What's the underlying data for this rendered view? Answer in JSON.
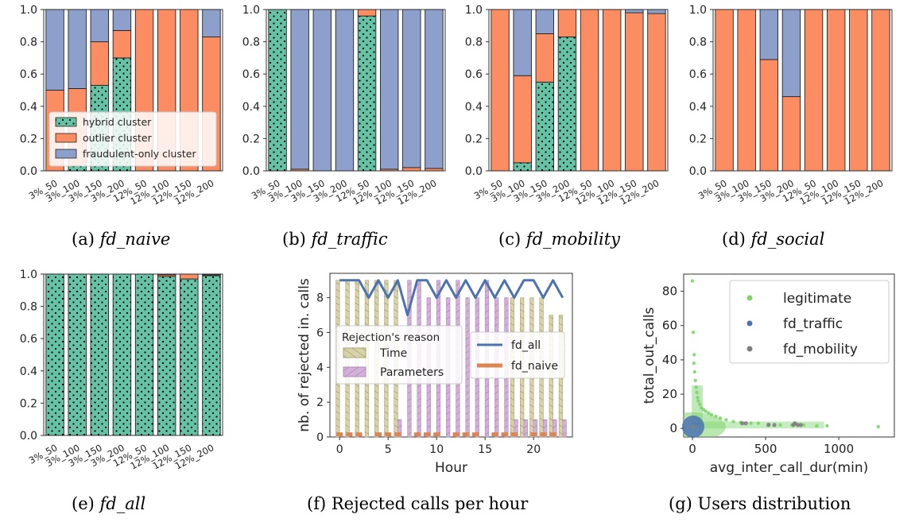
{
  "colors": {
    "hybrid": "#66c2a5",
    "outlier": "#fc8d62",
    "fraudulent": "#8da0cb",
    "time": "#d9d3a8",
    "parameters": "#d2b0d8",
    "fd_all": "#4c72b0",
    "fd_naive": "#dd8452",
    "legit": "#7fd46e",
    "fd_traffic_scatter": "#4c72b0",
    "fd_mobility_scatter": "#808080"
  },
  "cluster_legend": {
    "hybrid": "hybrid cluster",
    "outlier": "outlier cluster",
    "fraudulent": "fraudulent-only cluster"
  },
  "captions": {
    "a": {
      "prefix": "(a)",
      "name": "fd_naive"
    },
    "b": {
      "prefix": "(b)",
      "name": "fd_traffic"
    },
    "c": {
      "prefix": "(c)",
      "name": "fd_mobility"
    },
    "d": {
      "prefix": "(d)",
      "name": "fd_social"
    },
    "e": {
      "prefix": "(e)",
      "name": "fd_all"
    },
    "f": {
      "prefix": "(f)",
      "name": "Rejected calls per hour"
    },
    "g": {
      "prefix": "(g)",
      "name": "Users distribution"
    }
  },
  "chart_data": [
    {
      "id": "a",
      "type": "bar",
      "stacked": true,
      "categories": [
        "3%_50",
        "3%_100",
        "3%_150",
        "3%_200",
        "12%_50",
        "12%_100",
        "12%_150",
        "12%_200"
      ],
      "ylim": [
        0,
        1.0
      ],
      "yticks": [
        "0.0",
        "0.2",
        "0.4",
        "0.6",
        "0.8",
        "1.0"
      ],
      "legend": "lower-left",
      "series": [
        {
          "name": "hybrid cluster",
          "values": [
            0.0,
            0.03,
            0.53,
            0.7,
            0.0,
            0.0,
            0.0,
            0.0
          ]
        },
        {
          "name": "outlier cluster",
          "values": [
            0.5,
            0.48,
            0.27,
            0.17,
            1.0,
            1.0,
            1.0,
            0.83
          ]
        },
        {
          "name": "fraudulent-only cluster",
          "values": [
            0.5,
            0.49,
            0.2,
            0.13,
            0.0,
            0.0,
            0.0,
            0.17
          ]
        }
      ]
    },
    {
      "id": "b",
      "type": "bar",
      "stacked": true,
      "categories": [
        "3%_50",
        "3%_100",
        "3%_150",
        "3%_200",
        "12%_50",
        "12%_100",
        "12%_150",
        "12%_200"
      ],
      "ylim": [
        0,
        1.0
      ],
      "yticks": [
        "0.0",
        "0.2",
        "0.4",
        "0.6",
        "0.8",
        "1.0"
      ],
      "series": [
        {
          "name": "hybrid cluster",
          "values": [
            1.0,
            0.0,
            0.0,
            0.0,
            0.96,
            0.0,
            0.0,
            0.0
          ]
        },
        {
          "name": "outlier cluster",
          "values": [
            0.0,
            0.01,
            0.0,
            0.0,
            0.04,
            0.01,
            0.02,
            0.015
          ]
        },
        {
          "name": "fraudulent-only cluster",
          "values": [
            0.0,
            0.99,
            1.0,
            1.0,
            0.0,
            0.99,
            0.98,
            0.985
          ]
        }
      ]
    },
    {
      "id": "c",
      "type": "bar",
      "stacked": true,
      "categories": [
        "3%_50",
        "3%_100",
        "3%_150",
        "3%_200",
        "12%_50",
        "12%_100",
        "12%_150",
        "12%_200"
      ],
      "ylim": [
        0,
        1.0
      ],
      "yticks": [
        "0.0",
        "0.2",
        "0.4",
        "0.6",
        "0.8",
        "1.0"
      ],
      "series": [
        {
          "name": "hybrid cluster",
          "values": [
            0.0,
            0.05,
            0.55,
            0.83,
            0.0,
            0.0,
            0.0,
            0.0
          ]
        },
        {
          "name": "outlier cluster",
          "values": [
            1.0,
            0.54,
            0.3,
            0.17,
            1.0,
            1.0,
            0.98,
            0.975
          ]
        },
        {
          "name": "fraudulent-only cluster",
          "values": [
            0.0,
            0.41,
            0.15,
            0.0,
            0.0,
            0.0,
            0.02,
            0.025
          ]
        }
      ]
    },
    {
      "id": "d",
      "type": "bar",
      "stacked": true,
      "categories": [
        "3%_50",
        "3%_100",
        "3%_150",
        "3%_200",
        "12%_50",
        "12%_100",
        "12%_150",
        "12%_200"
      ],
      "ylim": [
        0,
        1.0
      ],
      "yticks": [
        "0.0",
        "0.2",
        "0.4",
        "0.6",
        "0.8",
        "1.0"
      ],
      "series": [
        {
          "name": "hybrid cluster",
          "values": [
            0.0,
            0.0,
            0.0,
            0.0,
            0.0,
            0.0,
            0.0,
            0.0
          ]
        },
        {
          "name": "outlier cluster",
          "values": [
            1.0,
            1.0,
            0.69,
            0.46,
            1.0,
            1.0,
            1.0,
            1.0
          ]
        },
        {
          "name": "fraudulent-only cluster",
          "values": [
            0.0,
            0.0,
            0.31,
            0.54,
            0.0,
            0.0,
            0.0,
            0.0
          ]
        }
      ]
    },
    {
      "id": "e",
      "type": "bar",
      "stacked": true,
      "categories": [
        "3%_50",
        "3%_100",
        "3%_150",
        "3%_200",
        "12%_50",
        "12%_100",
        "12%_150",
        "12%_200"
      ],
      "ylim": [
        0,
        1.0
      ],
      "yticks": [
        "0.0",
        "0.2",
        "0.4",
        "0.6",
        "0.8",
        "1.0"
      ],
      "series": [
        {
          "name": "hybrid cluster",
          "values": [
            1.0,
            1.0,
            1.0,
            1.0,
            1.0,
            0.985,
            0.97,
            0.99
          ]
        },
        {
          "name": "outlier cluster",
          "values": [
            0.0,
            0.0,
            0.0,
            0.0,
            0.0,
            0.01,
            0.03,
            0.005
          ]
        },
        {
          "name": "fraudulent-only cluster",
          "values": [
            0.0,
            0.0,
            0.0,
            0.0,
            0.0,
            0.005,
            0.0,
            0.005
          ]
        }
      ]
    },
    {
      "id": "f",
      "type": "bar+line",
      "xlabel": "Hour",
      "ylabel": "nb. of rejected in. calls",
      "xlim": [
        -1,
        24
      ],
      "ylim": [
        0,
        9.4
      ],
      "xticks": [
        0,
        5,
        10,
        15,
        20
      ],
      "yticks": [
        0,
        2,
        4,
        6,
        8
      ],
      "bar_legend_title": "Rejection's reason",
      "bars": [
        {
          "name": "Time",
          "values": [
            9,
            9,
            9,
            9,
            9,
            9,
            9,
            0,
            0,
            0,
            0,
            0,
            0,
            0,
            0,
            0,
            0,
            0,
            8,
            8,
            8,
            8,
            7,
            7
          ]
        },
        {
          "name": "Parameters",
          "values": [
            0,
            0,
            0,
            0,
            0,
            0,
            1,
            9,
            9,
            8,
            9,
            8,
            9,
            8,
            8,
            9,
            8,
            8,
            1,
            1,
            1,
            1,
            1,
            1
          ]
        }
      ],
      "lines": [
        {
          "name": "fd_all",
          "values": [
            9,
            9,
            9,
            8,
            9,
            8,
            9,
            7,
            9,
            9,
            8,
            9,
            8,
            9,
            8,
            9,
            8,
            9,
            8,
            9,
            9,
            8,
            9,
            8
          ]
        },
        {
          "name": "fd_naive",
          "values": [
            0.15,
            0.15,
            0.15,
            0,
            0.15,
            0.15,
            0.15,
            0,
            0.15,
            0.15,
            0.15,
            0,
            0.15,
            0.15,
            0.15,
            0,
            0.15,
            0.15,
            0.15,
            0,
            0.15,
            0.15,
            0.15,
            0
          ]
        }
      ]
    },
    {
      "id": "g",
      "type": "scatter",
      "xlabel": "avg_inter_call_dur(min)",
      "ylabel": "total_out_calls",
      "xlim": [
        -60,
        1380
      ],
      "ylim": [
        -5,
        90
      ],
      "xticks": [
        0,
        500,
        1000
      ],
      "yticks": [
        0,
        20,
        40,
        60,
        80
      ],
      "series": [
        {
          "name": "legitimate",
          "points": [
            [
              0,
              86
            ],
            [
              5,
              56
            ],
            [
              12,
              43
            ],
            [
              10,
              38
            ],
            [
              15,
              33
            ],
            [
              20,
              28
            ],
            [
              25,
              24
            ],
            [
              30,
              21
            ],
            [
              35,
              18
            ],
            [
              40,
              16
            ],
            [
              50,
              14
            ],
            [
              60,
              12
            ],
            [
              75,
              11
            ],
            [
              90,
              10
            ],
            [
              110,
              9
            ],
            [
              130,
              8
            ],
            [
              160,
              7
            ],
            [
              190,
              6
            ],
            [
              230,
              5
            ],
            [
              280,
              4
            ],
            [
              330,
              3.5
            ],
            [
              400,
              3
            ],
            [
              450,
              3
            ],
            [
              520,
              2.5
            ],
            [
              600,
              2
            ],
            [
              680,
              2
            ],
            [
              760,
              2
            ],
            [
              850,
              1.5
            ],
            [
              920,
              1.5
            ],
            [
              1270,
              1
            ]
          ]
        },
        {
          "name": "fd_traffic",
          "points": [
            [
              5,
              1
            ]
          ]
        },
        {
          "name": "fd_mobility",
          "points": [
            [
              5,
              1
            ],
            [
              340,
              3
            ],
            [
              365,
              3
            ],
            [
              520,
              2
            ],
            [
              560,
              2
            ],
            [
              690,
              2
            ],
            [
              700,
              3
            ],
            [
              720,
              2
            ],
            [
              740,
              2
            ]
          ]
        }
      ]
    }
  ]
}
